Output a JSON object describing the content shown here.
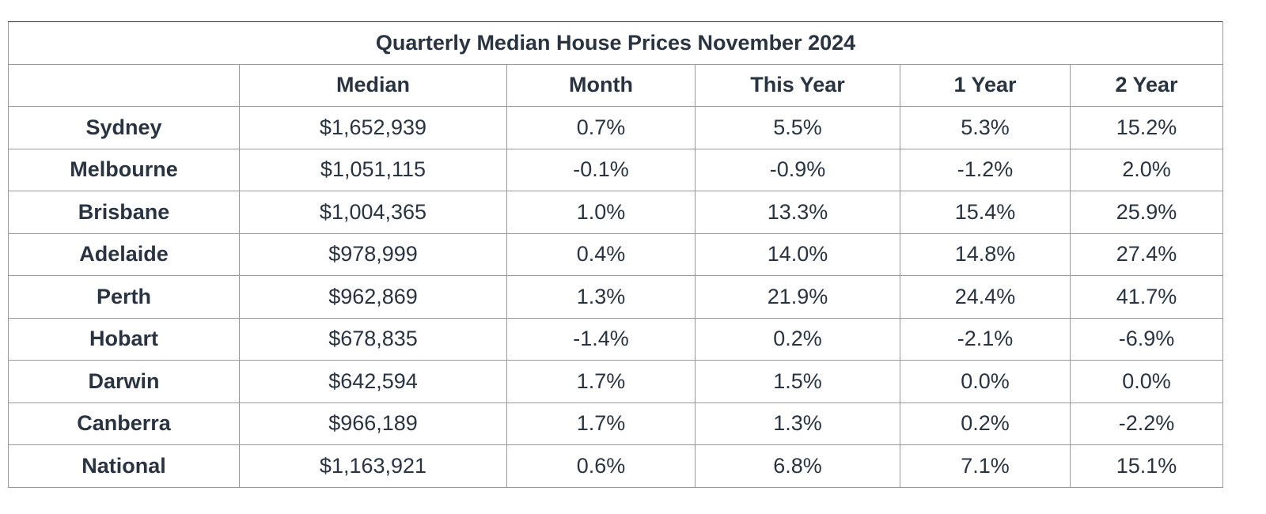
{
  "chart_data": {
    "type": "table",
    "title": "Quarterly Median House Prices November 2024",
    "columns": [
      "",
      "Median",
      "Month",
      "This Year",
      "1 Year",
      "2 Year"
    ],
    "rows": [
      [
        "Sydney",
        "$1,652,939",
        "0.7%",
        "5.5%",
        "5.3%",
        "15.2%"
      ],
      [
        "Melbourne",
        "$1,051,115",
        "-0.1%",
        "-0.9%",
        "-1.2%",
        "2.0%"
      ],
      [
        "Brisbane",
        "$1,004,365",
        "1.0%",
        "13.3%",
        "15.4%",
        "25.9%"
      ],
      [
        "Adelaide",
        "$978,999",
        "0.4%",
        "14.0%",
        "14.8%",
        "27.4%"
      ],
      [
        "Perth",
        "$962,869",
        "1.3%",
        "21.9%",
        "24.4%",
        "41.7%"
      ],
      [
        "Hobart",
        "$678,835",
        "-1.4%",
        "0.2%",
        "-2.1%",
        "-6.9%"
      ],
      [
        "Darwin",
        "$642,594",
        "1.7%",
        "1.5%",
        "0.0%",
        "0.0%"
      ],
      [
        "Canberra",
        "$966,189",
        "1.7%",
        "1.3%",
        "0.2%",
        "-2.2%"
      ],
      [
        "National",
        "$1,163,921",
        "0.6%",
        "6.8%",
        "7.1%",
        "15.1%"
      ]
    ]
  },
  "colors": {
    "text": "#2a3441",
    "border": "#9a9a9a",
    "border_dark": "#333333",
    "background": "#ffffff"
  }
}
